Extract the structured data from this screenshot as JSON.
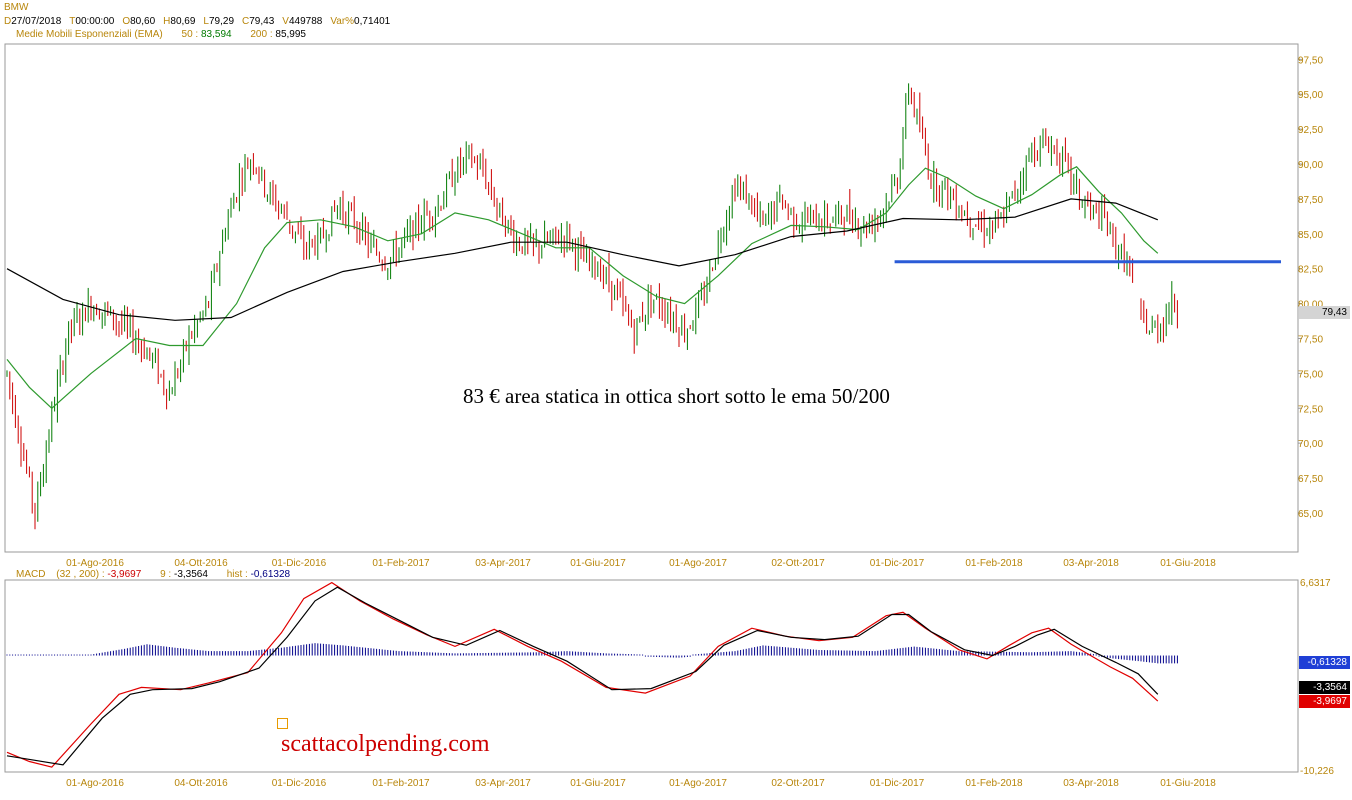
{
  "header": {
    "symbol": "BMW",
    "ohlc": [
      {
        "label": "D",
        "value": "27/07/2018"
      },
      {
        "label": "T",
        "value": "00:00:00"
      },
      {
        "label": "O",
        "value": "80,60"
      },
      {
        "label": "H",
        "value": "80,69"
      },
      {
        "label": "L",
        "value": "79,29"
      },
      {
        "label": "C",
        "value": "79,43"
      },
      {
        "label": "V",
        "value": "449788"
      },
      {
        "label": "Var%",
        "value": "0,71401"
      }
    ],
    "ema": {
      "title": "Medie Mobili Esponenziali (EMA)",
      "p50_label": "50 :",
      "p50_value": "83,594",
      "p200_label": "200 :",
      "p200_value": "85,995"
    }
  },
  "macd_header": {
    "title": "MACD",
    "params": "(32 , 200) :",
    "macd_value": "-3,9697",
    "signal_label": "9 :",
    "signal_value": "-3,3564",
    "hist_label": "hist :",
    "hist_value": "-0,61328"
  },
  "annotation": "83 € area statica in ottica short sotto le ema 50/200",
  "watermark": "scattacolpending.com",
  "colors": {
    "up_candle": "#007a00",
    "down_candle": "#cc0000",
    "ema50": "#2e9a2e",
    "ema200": "#000000",
    "support_line": "#2a5bd7",
    "macd_line": "#e00000",
    "signal_line": "#000000",
    "histogram": "#00008b",
    "axis_text": "#b8860b"
  },
  "chart_data": [
    {
      "type": "candlestick",
      "title": "BMW",
      "x_ticks": [
        "01-Ago-2016",
        "04-Ott-2016",
        "01-Dic-2016",
        "01-Feb-2017",
        "03-Apr-2017",
        "01-Giu-2017",
        "01-Ago-2017",
        "02-Ott-2017",
        "01-Dic-2017",
        "01-Feb-2018",
        "03-Apr-2018",
        "01-Giu-2018"
      ],
      "y_ticks": [
        "97,50",
        "95,00",
        "92,50",
        "90,00",
        "87,50",
        "85,00",
        "82,50",
        "80,00",
        "77,50",
        "75,00",
        "72,50",
        "70,00",
        "67,50",
        "65,00"
      ],
      "y_tick_values": [
        97.5,
        95,
        92.5,
        90,
        87.5,
        85,
        82.5,
        80,
        77.5,
        75,
        72.5,
        70,
        67.5,
        65
      ],
      "ylim": [
        62.2,
        98.6
      ],
      "last_close": 79.43,
      "last_close_label": "79,43",
      "support_level": 83,
      "price_path": [
        [
          0,
          75
        ],
        [
          6,
          69
        ],
        [
          10,
          65
        ],
        [
          16,
          72
        ],
        [
          22,
          78
        ],
        [
          30,
          80
        ],
        [
          38,
          79
        ],
        [
          46,
          77.5
        ],
        [
          52,
          76
        ],
        [
          58,
          73.5
        ],
        [
          65,
          77.5
        ],
        [
          72,
          80
        ],
        [
          78,
          85.5
        ],
        [
          84,
          89.5
        ],
        [
          88,
          90.5
        ],
        [
          93,
          88
        ],
        [
          99,
          86.5
        ],
        [
          106,
          84
        ],
        [
          112,
          84.5
        ],
        [
          118,
          87
        ],
        [
          124,
          86
        ],
        [
          130,
          84
        ],
        [
          136,
          83
        ],
        [
          142,
          84.5
        ],
        [
          148,
          86
        ],
        [
          154,
          87
        ],
        [
          160,
          89.5
        ],
        [
          165,
          90.5
        ],
        [
          170,
          89.5
        ],
        [
          176,
          86.5
        ],
        [
          182,
          84.5
        ],
        [
          188,
          84
        ],
        [
          194,
          84.5
        ],
        [
          200,
          85
        ],
        [
          206,
          83
        ],
        [
          212,
          82.5
        ],
        [
          218,
          80.5
        ],
        [
          224,
          78
        ],
        [
          230,
          80.5
        ],
        [
          236,
          79.5
        ],
        [
          242,
          78
        ],
        [
          248,
          80
        ],
        [
          254,
          84.5
        ],
        [
          260,
          88.5
        ],
        [
          265,
          87.5
        ],
        [
          270,
          85.5
        ],
        [
          276,
          87.5
        ],
        [
          282,
          86
        ],
        [
          288,
          86
        ],
        [
          294,
          86
        ],
        [
          300,
          86.5
        ],
        [
          306,
          85.5
        ],
        [
          312,
          86.5
        ],
        [
          318,
          89
        ],
        [
          322,
          95.5
        ],
        [
          326,
          92.5
        ],
        [
          330,
          89
        ],
        [
          336,
          88
        ],
        [
          342,
          86.5
        ],
        [
          348,
          85.5
        ],
        [
          354,
          85.5
        ],
        [
          360,
          88
        ],
        [
          366,
          91
        ],
        [
          372,
          91.5
        ],
        [
          378,
          90
        ],
        [
          383,
          87.5
        ],
        [
          388,
          86.5
        ],
        [
          392,
          86
        ],
        [
          396,
          84
        ],
        [
          400,
          83
        ],
        [
          404,
          79.5
        ],
        [
          408,
          78
        ],
        [
          412,
          78.5
        ],
        [
          416,
          80
        ],
        [
          418,
          79.43
        ]
      ],
      "series": [
        {
          "name": "EMA 50",
          "last_value": 83.594,
          "path": [
            [
              0,
              76
            ],
            [
              8,
              74
            ],
            [
              16,
              72.5
            ],
            [
              30,
              75
            ],
            [
              46,
              77.5
            ],
            [
              58,
              77
            ],
            [
              70,
              77
            ],
            [
              82,
              80
            ],
            [
              92,
              84
            ],
            [
              100,
              85.8
            ],
            [
              112,
              86
            ],
            [
              124,
              85.5
            ],
            [
              136,
              84.5
            ],
            [
              148,
              85
            ],
            [
              160,
              86.5
            ],
            [
              172,
              86
            ],
            [
              184,
              85
            ],
            [
              196,
              84
            ],
            [
              208,
              84
            ],
            [
              220,
              82
            ],
            [
              232,
              80.5
            ],
            [
              242,
              80
            ],
            [
              254,
              82
            ],
            [
              266,
              84.3
            ],
            [
              280,
              85.6
            ],
            [
              292,
              85.5
            ],
            [
              304,
              85.3
            ],
            [
              314,
              86.5
            ],
            [
              322,
              88.5
            ],
            [
              328,
              89.7
            ],
            [
              336,
              89
            ],
            [
              346,
              87.7
            ],
            [
              356,
              86.8
            ],
            [
              366,
              87.8
            ],
            [
              376,
              89.2
            ],
            [
              382,
              89.8
            ],
            [
              390,
              88
            ],
            [
              398,
              86.5
            ],
            [
              406,
              84.5
            ],
            [
              411,
              83.6
            ]
          ]
        },
        {
          "name": "EMA 200",
          "last_value": 85.995,
          "path": [
            [
              0,
              82.5
            ],
            [
              20,
              80.3
            ],
            [
              40,
              79.2
            ],
            [
              60,
              78.8
            ],
            [
              80,
              79
            ],
            [
              100,
              80.8
            ],
            [
              120,
              82.3
            ],
            [
              140,
              83
            ],
            [
              160,
              83.6
            ],
            [
              180,
              84.4
            ],
            [
              200,
              84.4
            ],
            [
              220,
              83.5
            ],
            [
              240,
              82.7
            ],
            [
              260,
              83.5
            ],
            [
              280,
              84.8
            ],
            [
              300,
              85.2
            ],
            [
              320,
              86.1
            ],
            [
              340,
              86
            ],
            [
              360,
              86.2
            ],
            [
              380,
              87.5
            ],
            [
              396,
              87.2
            ],
            [
              411,
              86
            ]
          ]
        }
      ]
    },
    {
      "type": "macd",
      "title": "MACD",
      "params": [
        32,
        200,
        9
      ],
      "ylim": [
        -10.226,
        6.6317
      ],
      "y_labels": [
        "6,6317",
        "-10,226"
      ],
      "last_values": {
        "macd": -3.9697,
        "signal": -3.3564,
        "hist": -0.61328
      },
      "series": [
        {
          "name": "MACD",
          "path": [
            [
              0,
              -8.5
            ],
            [
              8,
              -9.3
            ],
            [
              16,
              -9.8
            ],
            [
              30,
              -6
            ],
            [
              40,
              -3.4
            ],
            [
              48,
              -2.8
            ],
            [
              62,
              -3
            ],
            [
              72,
              -2.4
            ],
            [
              86,
              -1.5
            ],
            [
              98,
              2
            ],
            [
              106,
              5
            ],
            [
              116,
              6.4
            ],
            [
              126,
              4.8
            ],
            [
              138,
              3.2
            ],
            [
              150,
              1.8
            ],
            [
              160,
              0.8
            ],
            [
              174,
              2.3
            ],
            [
              186,
              0.8
            ],
            [
              198,
              -0.5
            ],
            [
              214,
              -2.8
            ],
            [
              228,
              -3.3
            ],
            [
              244,
              -1.8
            ],
            [
              254,
              0.8
            ],
            [
              266,
              2.4
            ],
            [
              278,
              1.7
            ],
            [
              290,
              1.3
            ],
            [
              302,
              1.6
            ],
            [
              314,
              3.5
            ],
            [
              320,
              3.8
            ],
            [
              328,
              2.4
            ],
            [
              340,
              0.5
            ],
            [
              350,
              -0.3
            ],
            [
              358,
              0.9
            ],
            [
              366,
              2
            ],
            [
              372,
              2.4
            ],
            [
              380,
              1
            ],
            [
              394,
              -1
            ],
            [
              402,
              -2
            ],
            [
              411,
              -4
            ]
          ]
        },
        {
          "name": "Signal",
          "path": [
            [
              0,
              -8.8
            ],
            [
              10,
              -9.2
            ],
            [
              20,
              -9.6
            ],
            [
              34,
              -5.5
            ],
            [
              44,
              -3.4
            ],
            [
              52,
              -3
            ],
            [
              66,
              -2.9
            ],
            [
              76,
              -2.3
            ],
            [
              90,
              -1.1
            ],
            [
              100,
              1.6
            ],
            [
              110,
              4.8
            ],
            [
              118,
              6
            ],
            [
              128,
              4.6
            ],
            [
              140,
              3.1
            ],
            [
              152,
              1.6
            ],
            [
              164,
              0.9
            ],
            [
              176,
              2.2
            ],
            [
              188,
              0.8
            ],
            [
              200,
              -0.5
            ],
            [
              216,
              -3
            ],
            [
              230,
              -2.9
            ],
            [
              246,
              -1.4
            ],
            [
              256,
              0.9
            ],
            [
              268,
              2.2
            ],
            [
              280,
              1.6
            ],
            [
              292,
              1.4
            ],
            [
              304,
              1.7
            ],
            [
              316,
              3.6
            ],
            [
              322,
              3.6
            ],
            [
              330,
              2.1
            ],
            [
              342,
              0.5
            ],
            [
              352,
              0
            ],
            [
              360,
              0.8
            ],
            [
              368,
              1.8
            ],
            [
              374,
              2.3
            ],
            [
              384,
              0.8
            ],
            [
              396,
              -0.6
            ],
            [
              404,
              -1.6
            ],
            [
              411,
              -3.4
            ]
          ]
        },
        {
          "name": "Histogram",
          "path": [
            [
              0,
              0
            ],
            [
              30,
              0
            ],
            [
              42,
              0.5
            ],
            [
              50,
              0.9
            ],
            [
              60,
              0.6
            ],
            [
              72,
              0.3
            ],
            [
              86,
              0.3
            ],
            [
              98,
              0.6
            ],
            [
              110,
              1
            ],
            [
              120,
              0.8
            ],
            [
              140,
              0.3
            ],
            [
              160,
              0.1
            ],
            [
              190,
              0.2
            ],
            [
              200,
              0.3
            ],
            [
              214,
              0.1
            ],
            [
              240,
              -0.1
            ],
            [
              260,
              0.3
            ],
            [
              270,
              0.8
            ],
            [
              290,
              0.4
            ],
            [
              310,
              0.3
            ],
            [
              324,
              0.7
            ],
            [
              340,
              0.3
            ],
            [
              366,
              0.2
            ],
            [
              380,
              0.3
            ],
            [
              396,
              -0.2
            ],
            [
              404,
              -0.4
            ],
            [
              411,
              -0.6
            ]
          ]
        }
      ]
    }
  ]
}
